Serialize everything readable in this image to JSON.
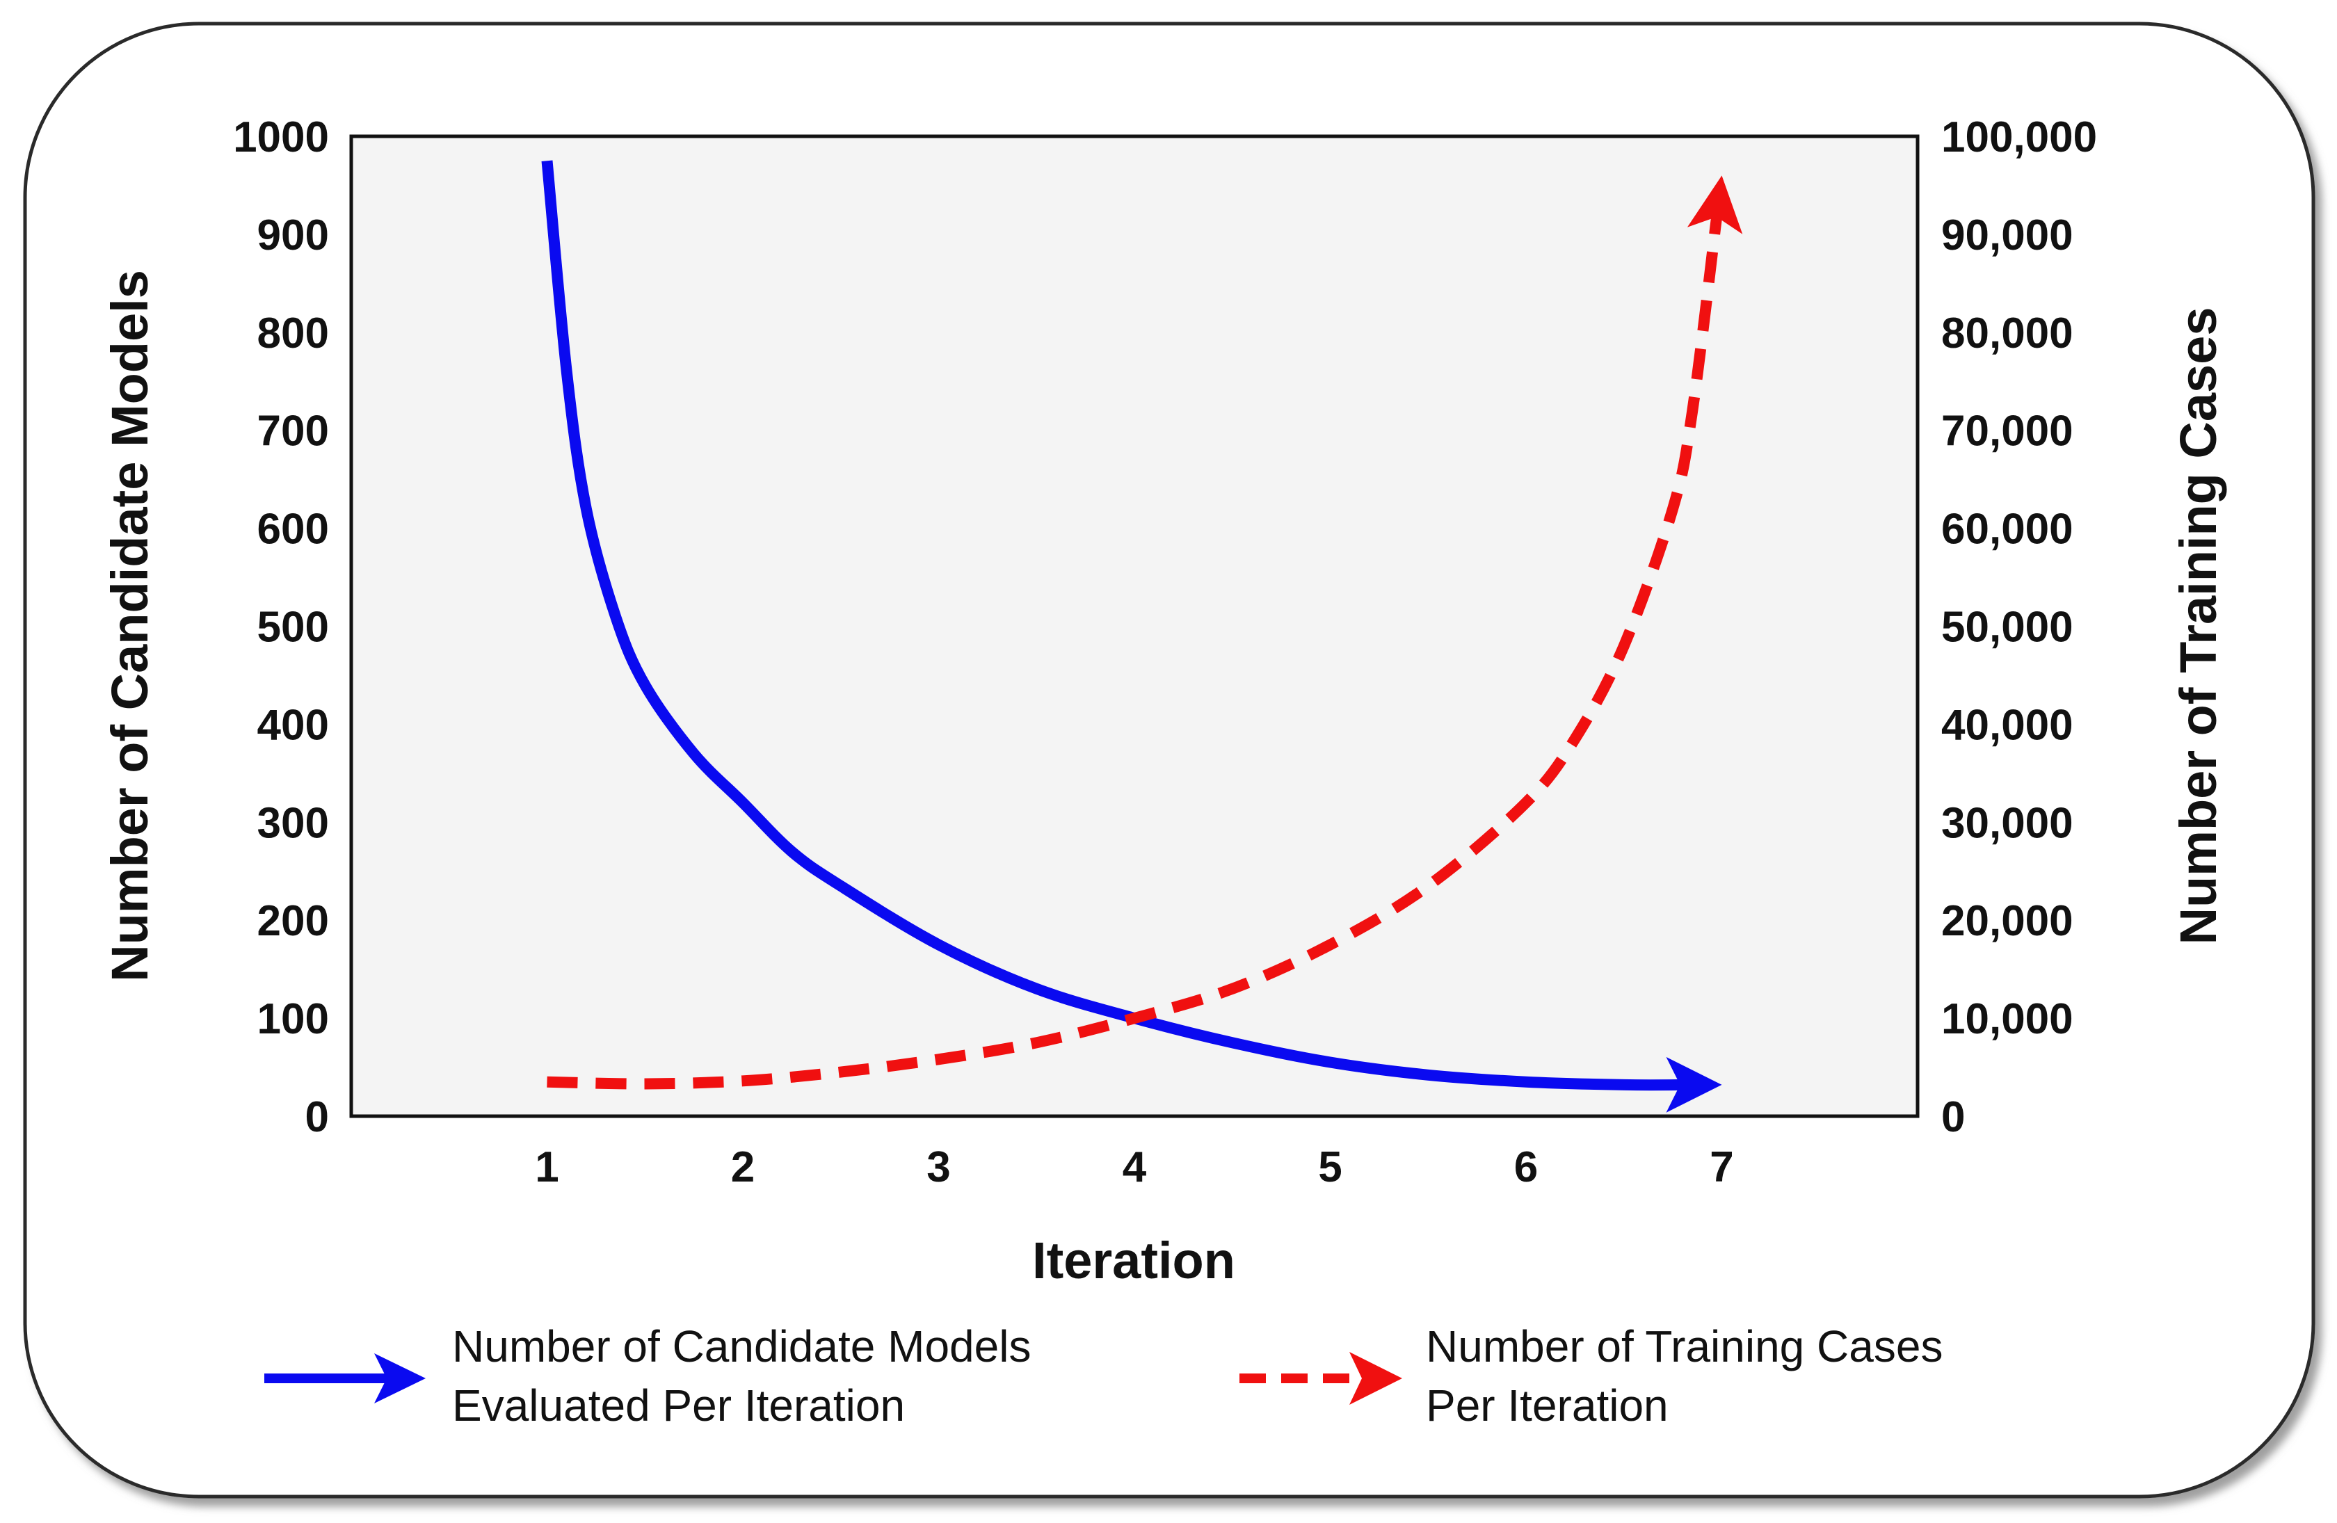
{
  "chart_data": {
    "type": "line",
    "title": "",
    "xlabel": "Iteration",
    "ylabel_left": "Number of Candidate Models",
    "ylabel_right": "Number of Training Cases",
    "x_ticks": [
      "1",
      "2",
      "3",
      "4",
      "5",
      "6",
      "7"
    ],
    "y_left_ticks": [
      "0",
      "100",
      "200",
      "300",
      "400",
      "500",
      "600",
      "700",
      "800",
      "900",
      "1000"
    ],
    "y_right_ticks": [
      "0",
      "10,000",
      "20,000",
      "30,000",
      "40,000",
      "50,000",
      "60,000",
      "70,000",
      "80,000",
      "90,000",
      "100,000"
    ],
    "xlim": [
      0,
      8
    ],
    "ylim_left": [
      0,
      1000
    ],
    "ylim_right": [
      0,
      100000
    ],
    "grid": false,
    "background_color": "#f4f4f4",
    "series": [
      {
        "name": "Number of Candidate Models Evaluated Per Iteration",
        "axis": "left",
        "color": "#0a0af0",
        "style": "solid",
        "arrow": true,
        "x": [
          1.0,
          1.1,
          1.2,
          1.35,
          1.5,
          1.75,
          2.0,
          2.25,
          2.5,
          3.0,
          3.5,
          4.0,
          4.5,
          5.0,
          5.5,
          6.0,
          6.5,
          7.0
        ],
        "values": [
          975,
          760,
          620,
          510,
          440,
          370,
          320,
          270,
          235,
          175,
          130,
          100,
          75,
          55,
          42,
          35,
          32,
          32
        ]
      },
      {
        "name": "Number of Training Cases Per Iteration",
        "axis": "right",
        "color": "#f01010",
        "style": "dashed",
        "arrow": true,
        "x": [
          1.0,
          1.5,
          2.0,
          2.5,
          3.0,
          3.5,
          4.0,
          4.5,
          5.0,
          5.5,
          6.0,
          6.25,
          6.5,
          6.75,
          6.85,
          7.0
        ],
        "values": [
          3500,
          3300,
          3600,
          4500,
          5800,
          7500,
          10000,
          13000,
          17500,
          23500,
          32000,
          38500,
          48000,
          62000,
          72000,
          96000
        ]
      }
    ],
    "legend": {
      "placement": "bottom",
      "entries": [
        {
          "line1": "Number of Candidate Models",
          "line2": "Evaluated Per Iteration"
        },
        {
          "line1": "Number of Training Cases",
          "line2": "Per Iteration"
        }
      ]
    }
  }
}
